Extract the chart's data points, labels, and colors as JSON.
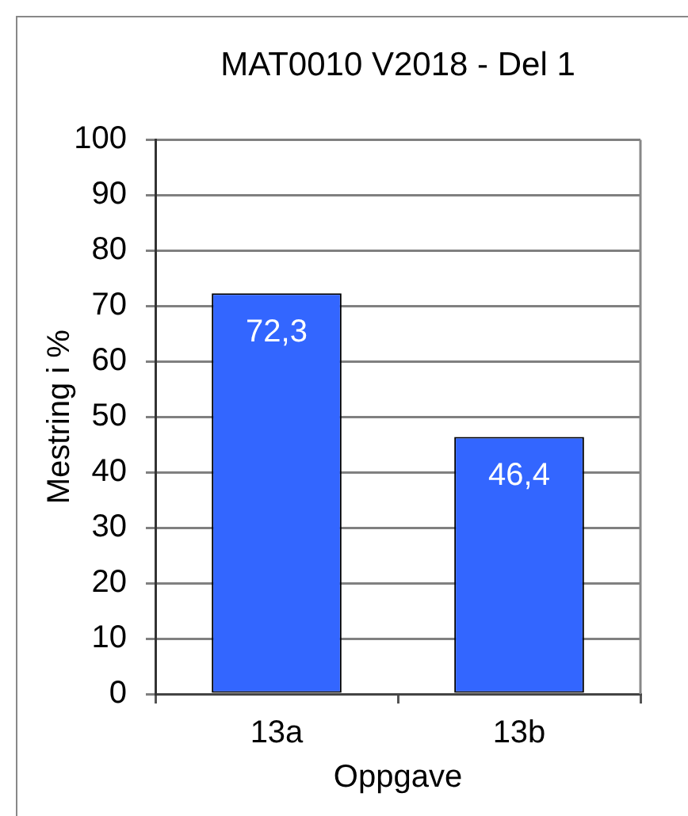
{
  "chart_data": {
    "type": "bar",
    "title": "MAT0010 V2018 - Del 1",
    "xlabel": "Oppgave",
    "ylabel": "Mestring i %",
    "categories": [
      "13a",
      "13b"
    ],
    "values": [
      72.3,
      46.4
    ],
    "value_labels": [
      "72,3",
      "46,4"
    ],
    "color": "#3366ff",
    "ylim": [
      0,
      100
    ],
    "yticks": [
      0,
      10,
      20,
      30,
      40,
      50,
      60,
      70,
      80,
      90,
      100
    ],
    "grid": "y"
  }
}
